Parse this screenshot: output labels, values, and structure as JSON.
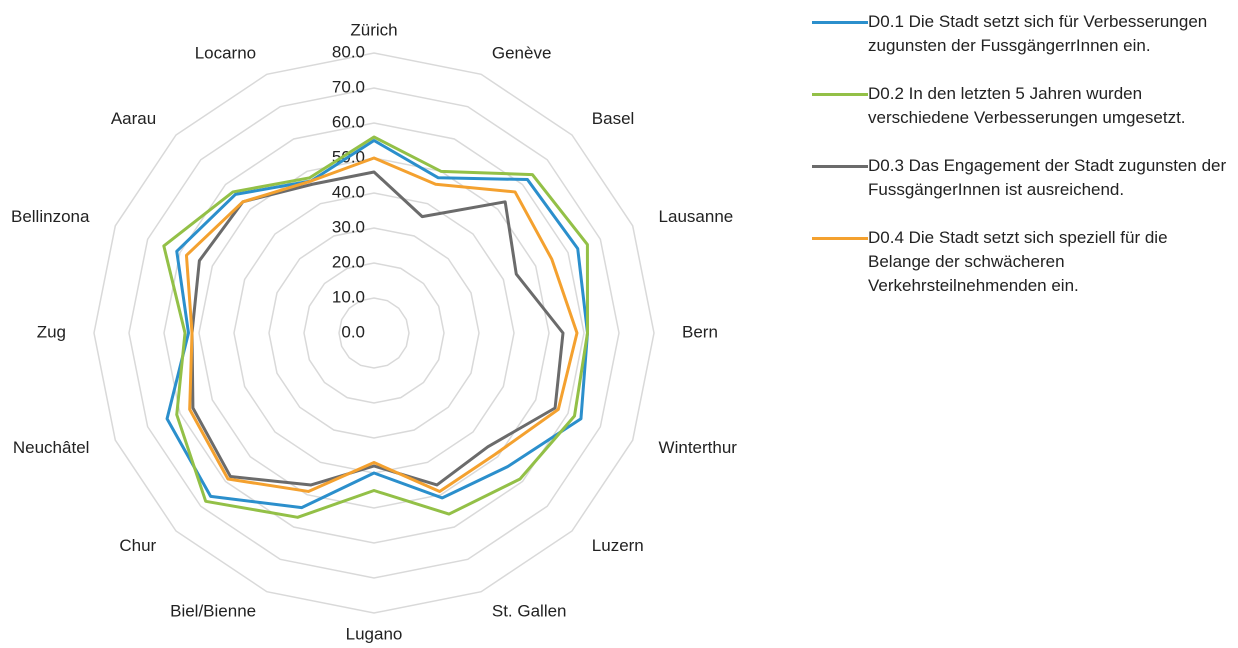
{
  "chart_data": {
    "type": "radar",
    "categories": [
      "Zürich",
      "Genève",
      "Basel",
      "Lausanne",
      "Bern",
      "Winterthur",
      "Luzern",
      "St. Gallen",
      "Lugano",
      "Biel/Bienne",
      "Chur",
      "Neuchâtel",
      "Zug",
      "Bellinzona",
      "Aarau",
      "Locarno"
    ],
    "series": [
      {
        "name": "D0.1 Die Stadt setzt sich für Verbesserungen zugunsten der FussgängerrInnen ein.",
        "color": "#2b8fcc",
        "values": [
          55,
          48,
          62,
          63,
          61,
          64,
          54,
          51,
          40,
          54,
          66,
          64,
          53,
          61,
          56,
          47
        ]
      },
      {
        "name": "D0.2 In den letzten 5 Jahren wurden verschiedene Verbesserungen umgesetzt.",
        "color": "#93c047",
        "values": [
          56,
          50,
          64,
          66,
          61,
          62,
          59,
          56,
          45,
          57,
          68,
          61,
          54,
          65,
          57,
          48
        ]
      },
      {
        "name": "D0.3 Das Engagement der Stadt zugunsten der FussgängerInnen ist ausreichend.",
        "color": "#6b6b6b",
        "values": [
          46,
          36,
          53,
          44,
          54,
          56,
          46,
          47,
          38,
          47,
          58,
          56,
          52,
          54,
          53,
          46
        ]
      },
      {
        "name": "D0.4 Die Stadt setzt sich speziell für die Belange der schwächeren Verkehrsteilnehmenden ein.",
        "color": "#f4a12f",
        "values": [
          50,
          46,
          57,
          55,
          58,
          57,
          49,
          49,
          37,
          49,
          59,
          57,
          52,
          58,
          53,
          47
        ]
      }
    ],
    "rlim": [
      0,
      80
    ],
    "rticks": [
      {
        "value": 0,
        "label": "0.0"
      },
      {
        "value": 10,
        "label": "10.0"
      },
      {
        "value": 20,
        "label": "20.0"
      },
      {
        "value": 30,
        "label": "30.0"
      },
      {
        "value": 40,
        "label": "40.0"
      },
      {
        "value": 50,
        "label": "50.0"
      },
      {
        "value": 60,
        "label": "60.0"
      },
      {
        "value": 70,
        "label": "70.0"
      },
      {
        "value": 80,
        "label": "80.0"
      }
    ],
    "grid": true,
    "legend": "right"
  }
}
